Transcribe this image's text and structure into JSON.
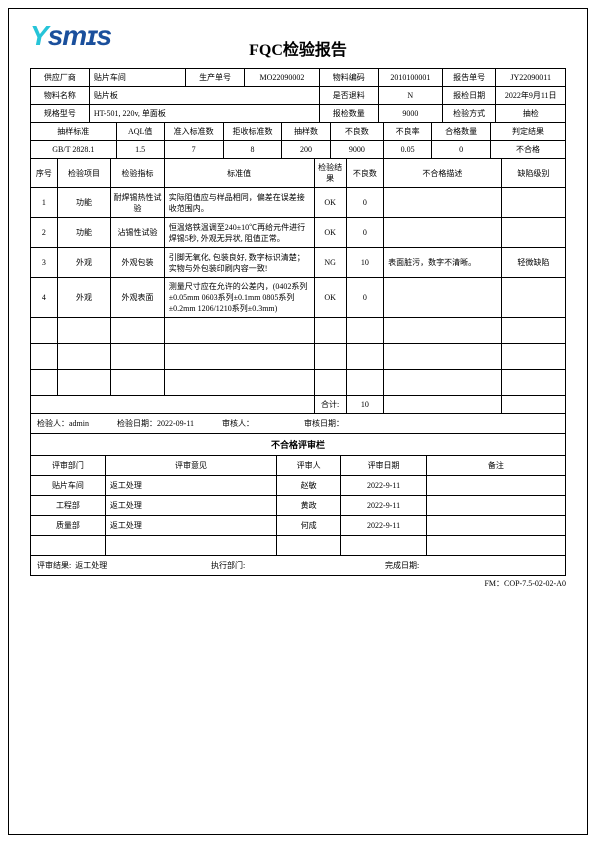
{
  "logo": {
    "prefix": "Y",
    "suffix": "smɪs"
  },
  "title": "FQC检验报告",
  "header": {
    "labels": {
      "supplier": "供应厂商",
      "prodNo": "生产单号",
      "matCode": "物料编码",
      "rptNo": "报告单号",
      "matName": "物料名称",
      "isReturn": "是否退料",
      "chkDate": "报检日期",
      "spec": "规格型号",
      "chkQty": "报检数量",
      "chkMethod": "检验方式"
    },
    "values": {
      "supplier": "贴片车间",
      "prodNo": "MO22090002",
      "matCode": "2010100001",
      "rptNo": "JY22090011",
      "matName": "贴片板",
      "isReturn": "N",
      "chkDate": "2022年9月11日",
      "spec": "HT-501, 220v, 单面板",
      "chkQty": "9000",
      "chkMethod": "抽检"
    }
  },
  "sampling": {
    "labels": {
      "std": "抽样标准",
      "aql": "AQL值",
      "acc": "准入标准数",
      "rej": "拒收标准数",
      "sampleN": "抽样数",
      "defectN": "不良数",
      "defectR": "不良率",
      "okQty": "合格数量",
      "result": "判定结果"
    },
    "values": {
      "std": "GB/T 2828.1",
      "aql": "1.5",
      "acc": "7",
      "rej": "8",
      "sampleN": "200",
      "defectN": "9000",
      "defectR": "0.05",
      "okQty": "0",
      "result": "不合格"
    }
  },
  "itemsHdr": {
    "seq": "序号",
    "item": "检验项目",
    "metric": "检验指标",
    "stdVal": "标准值",
    "res": "检验结果",
    "ngN": "不良数",
    "ngDesc": "不合格描述",
    "level": "缺陷级别"
  },
  "items": [
    {
      "seq": "1",
      "item": "功能",
      "metric": "耐焊锡热性试验",
      "stdVal": "实际阻值应与样品相同，偏差在误差接收范围内。",
      "res": "OK",
      "ngN": "0",
      "ngDesc": "",
      "level": ""
    },
    {
      "seq": "2",
      "item": "功能",
      "metric": "沾锡性试验",
      "stdVal": "恒温烙铁温调至240±10℃再给元件进行焊锡5秒, 外观无异状, 阻值正常。",
      "res": "OK",
      "ngN": "0",
      "ngDesc": "",
      "level": ""
    },
    {
      "seq": "3",
      "item": "外观",
      "metric": "外观包装",
      "stdVal": "引脚无氧化, 包装良好, 数字标识清楚；实物与外包装印刷内容一致!",
      "res": "NG",
      "ngN": "10",
      "ngDesc": "表面脏污，数字不清晰。",
      "level": "轻微缺陷"
    },
    {
      "seq": "4",
      "item": "外观",
      "metric": "外观表面",
      "stdVal": "测量尺寸应在允许的公差内，(0402系列±0.05mm 0603系列±0.1mm 0805系列±0.2mm 1206/1210系列±0.3mm)",
      "res": "OK",
      "ngN": "0",
      "ngDesc": "",
      "level": ""
    }
  ],
  "totalLabel": "合计:",
  "totalVal": "10",
  "sig": {
    "inspector_l": "检验人：",
    "inspector_v": "admin",
    "date_l": "检验日期：",
    "date_v": "2022-09-11",
    "auditor_l": "审核人：",
    "auditDate_l": "审核日期："
  },
  "reviewTitle": "不合格评审栏",
  "reviewHdr": {
    "dept": "评审部门",
    "opinion": "评审意见",
    "person": "评审人",
    "date": "评审日期",
    "note": "备注"
  },
  "reviews": [
    {
      "dept": "贴片车间",
      "opinion": "返工处理",
      "person": "赵敏",
      "date": "2022-9-11",
      "note": ""
    },
    {
      "dept": "工程部",
      "opinion": "返工处理",
      "person": "黄政",
      "date": "2022-9-11",
      "note": ""
    },
    {
      "dept": "质量部",
      "opinion": "返工处理",
      "person": "何成",
      "date": "2022-9-11",
      "note": ""
    }
  ],
  "final": {
    "result_l": "评审结果:",
    "result_v": "返工处理",
    "exec_l": "执行部门:",
    "done_l": "完成日期:"
  },
  "formNo": "FM：COP-7.5-02-02-A0"
}
